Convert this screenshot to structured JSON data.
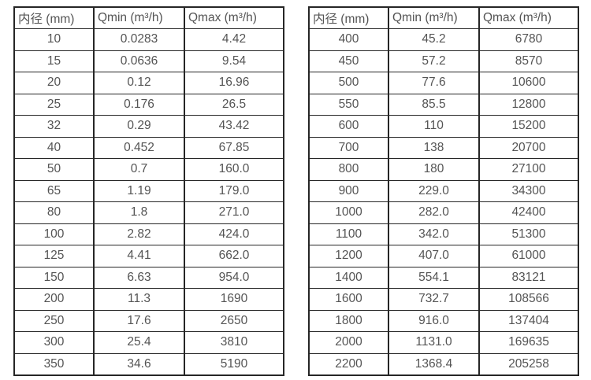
{
  "colors": {
    "border": "#262626",
    "text": "#545454",
    "background": "#ffffff"
  },
  "chart_data": [
    {
      "type": "table",
      "title": "",
      "columns": [
        "内径 (mm)",
        "Qmin (m³/h)",
        "Qmax (m³/h)"
      ],
      "rows": [
        [
          "10",
          "0.0283",
          "4.42"
        ],
        [
          "15",
          "0.0636",
          "9.54"
        ],
        [
          "20",
          "0.12",
          "16.96"
        ],
        [
          "25",
          "0.176",
          "26.5"
        ],
        [
          "32",
          "0.29",
          "43.42"
        ],
        [
          "40",
          "0.452",
          "67.85"
        ],
        [
          "50",
          "0.7",
          "160.0"
        ],
        [
          "65",
          "1.19",
          "179.0"
        ],
        [
          "80",
          "1.8",
          "271.0"
        ],
        [
          "100",
          "2.82",
          "424.0"
        ],
        [
          "125",
          "4.41",
          "662.0"
        ],
        [
          "150",
          "6.63",
          "954.0"
        ],
        [
          "200",
          "11.3",
          "1690"
        ],
        [
          "250",
          "17.6",
          "2650"
        ],
        [
          "300",
          "25.4",
          "3810"
        ],
        [
          "350",
          "34.6",
          "5190"
        ]
      ]
    },
    {
      "type": "table",
      "title": "",
      "columns": [
        "内径 (mm)",
        "Qmin (m³/h)",
        "Qmax (m³/h)"
      ],
      "rows": [
        [
          "400",
          "45.2",
          "6780"
        ],
        [
          "450",
          "57.2",
          "8570"
        ],
        [
          "500",
          "77.6",
          "10600"
        ],
        [
          "550",
          "85.5",
          "12800"
        ],
        [
          "600",
          "110",
          "15200"
        ],
        [
          "700",
          "138",
          "20700"
        ],
        [
          "800",
          "180",
          "27100"
        ],
        [
          "900",
          "229.0",
          "34300"
        ],
        [
          "1000",
          "282.0",
          "42400"
        ],
        [
          "1100",
          "342.0",
          "51300"
        ],
        [
          "1200",
          "407.0",
          "61000"
        ],
        [
          "1400",
          "554.1",
          "83121"
        ],
        [
          "1600",
          "732.7",
          "108566"
        ],
        [
          "1800",
          "916.0",
          "137404"
        ],
        [
          "2000",
          "1131.0",
          "169635"
        ],
        [
          "2200",
          "1368.4",
          "205258"
        ]
      ]
    }
  ]
}
